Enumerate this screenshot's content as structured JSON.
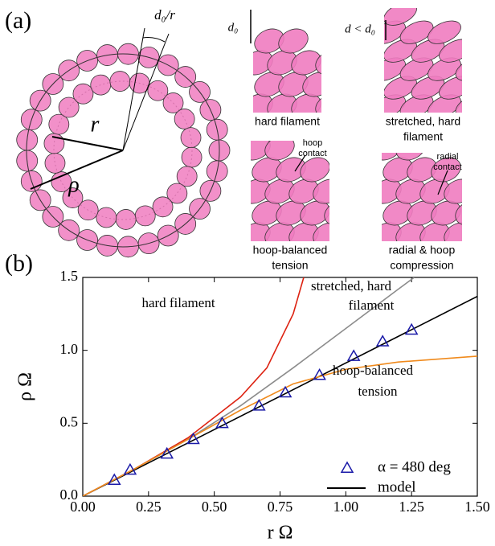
{
  "panel_a": {
    "label": "(a)",
    "ring_labels": {
      "d0_over_r": "d₀/r",
      "r": "r",
      "rho": "ρ"
    },
    "panels": [
      {
        "caption": [
          "hard filament"
        ],
        "size_label": "d₀"
      },
      {
        "caption": [
          "stretched, hard",
          "filament"
        ],
        "size_label": "d < d₀"
      },
      {
        "caption": [
          "hoop-balanced",
          "tension"
        ],
        "contact_label": [
          "hoop",
          "contact"
        ]
      },
      {
        "caption": [
          "radial & hoop",
          "compression"
        ],
        "contact_label": [
          "radial",
          "contact"
        ]
      }
    ]
  },
  "chart_data": {
    "type": "line",
    "label": "(b)",
    "xlabel": "r Ω",
    "ylabel": "ρ Ω",
    "xlim": [
      0,
      1.5
    ],
    "ylim": [
      0,
      1.5
    ],
    "xticks": [
      {
        "value": 0,
        "label": "0.00"
      },
      {
        "value": 0.25,
        "label": "0.25"
      },
      {
        "value": 0.5,
        "label": "0.50"
      },
      {
        "value": 0.75,
        "label": "0.75"
      },
      {
        "value": 1,
        "label": "1.00"
      },
      {
        "value": 1.25,
        "label": "1.25"
      },
      {
        "value": 1.5,
        "label": "1.50"
      }
    ],
    "yticks": [
      {
        "value": 0,
        "label": "0.0"
      },
      0.5,
      {
        "value": 1,
        "label": "1.0"
      },
      1.5
    ],
    "legend": "lower right",
    "series": [
      {
        "name": "α = 480 deg",
        "color": "#1a1aa8",
        "marker": "triangle",
        "x": [
          0.12,
          0.18,
          0.32,
          0.42,
          0.53,
          0.67,
          0.77,
          0.9,
          1.03,
          1.14,
          1.25
        ],
        "values": [
          0.11,
          0.18,
          0.29,
          0.39,
          0.5,
          0.62,
          0.71,
          0.83,
          0.96,
          1.06,
          1.14
        ]
      },
      {
        "name": "model",
        "color": "#000000",
        "x": [
          0,
          1.5
        ],
        "values": [
          0,
          1.37
        ]
      },
      {
        "label": [
          "hard filament"
        ],
        "color": "#dd2211",
        "x": [
          0,
          0.2,
          0.4,
          0.6,
          0.7,
          0.8,
          0.84
        ],
        "values": [
          0,
          0.19,
          0.4,
          0.68,
          0.88,
          1.25,
          1.5
        ]
      },
      {
        "label": [
          "stretched, hard",
          "filament"
        ],
        "color": "#8c8c8c",
        "x": [
          0,
          0.2,
          0.4,
          0.6,
          0.8,
          1.0,
          1.2,
          1.26
        ],
        "values": [
          0,
          0.19,
          0.39,
          0.62,
          0.88,
          1.15,
          1.42,
          1.5
        ]
      },
      {
        "label": [
          "hoop-balanced",
          "tension"
        ],
        "color": "#f08a1c",
        "x": [
          0,
          0.2,
          0.4,
          0.6,
          0.8,
          1.0,
          1.2,
          1.5
        ],
        "values": [
          0,
          0.19,
          0.39,
          0.59,
          0.77,
          0.87,
          0.92,
          0.96
        ]
      }
    ]
  }
}
